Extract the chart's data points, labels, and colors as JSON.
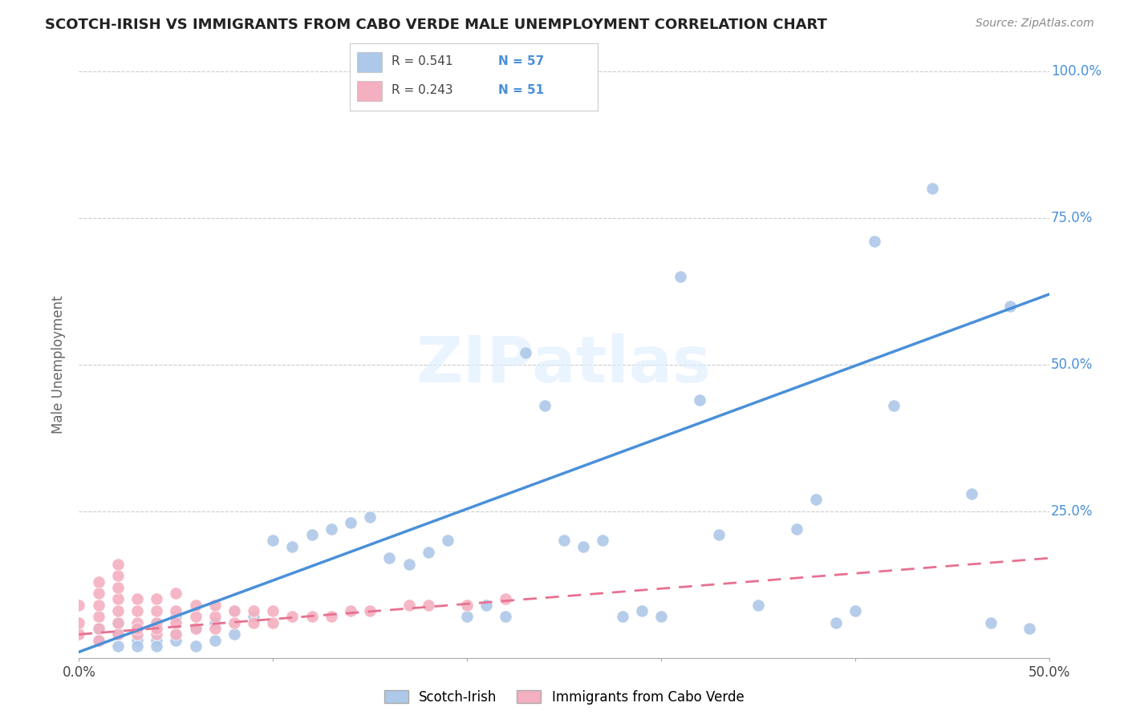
{
  "title": "SCOTCH-IRISH VS IMMIGRANTS FROM CABO VERDE MALE UNEMPLOYMENT CORRELATION CHART",
  "source": "Source: ZipAtlas.com",
  "ylabel": "Male Unemployment",
  "xlim": [
    0,
    0.5
  ],
  "ylim": [
    0,
    1.0
  ],
  "xticks": [
    0.0,
    0.1,
    0.2,
    0.3,
    0.4,
    0.5
  ],
  "xtick_labels": [
    "0.0%",
    "",
    "",
    "",
    "",
    "50.0%"
  ],
  "yticks": [
    0.0,
    0.25,
    0.5,
    0.75,
    1.0
  ],
  "ytick_labels": [
    "",
    "25.0%",
    "50.0%",
    "75.0%",
    "100.0%"
  ],
  "blue_R": "0.541",
  "blue_N": "57",
  "pink_R": "0.243",
  "pink_N": "51",
  "blue_color": "#adc8e8",
  "pink_color": "#f4afc0",
  "blue_line_color": "#4a90d9",
  "pink_line_color": "#e87090",
  "watermark": "ZIPatlas",
  "legend_label_blue": "Scotch-Irish",
  "legend_label_pink": "Immigrants from Cabo Verde",
  "blue_line_slope": 1.22,
  "blue_line_intercept": 0.01,
  "pink_line_slope": 0.26,
  "pink_line_intercept": 0.04,
  "blue_scatter_x": [
    0.01,
    0.01,
    0.02,
    0.02,
    0.02,
    0.03,
    0.03,
    0.03,
    0.04,
    0.04,
    0.04,
    0.05,
    0.05,
    0.05,
    0.06,
    0.06,
    0.07,
    0.07,
    0.08,
    0.08,
    0.09,
    0.1,
    0.11,
    0.12,
    0.13,
    0.14,
    0.15,
    0.16,
    0.17,
    0.18,
    0.19,
    0.2,
    0.21,
    0.22,
    0.23,
    0.24,
    0.25,
    0.26,
    0.27,
    0.28,
    0.29,
    0.3,
    0.31,
    0.32,
    0.33,
    0.35,
    0.37,
    0.38,
    0.39,
    0.4,
    0.41,
    0.42,
    0.44,
    0.46,
    0.47,
    0.48,
    0.49
  ],
  "blue_scatter_y": [
    0.03,
    0.05,
    0.02,
    0.04,
    0.06,
    0.03,
    0.05,
    0.02,
    0.03,
    0.06,
    0.02,
    0.04,
    0.07,
    0.03,
    0.05,
    0.02,
    0.06,
    0.03,
    0.08,
    0.04,
    0.07,
    0.2,
    0.19,
    0.21,
    0.22,
    0.23,
    0.24,
    0.17,
    0.16,
    0.18,
    0.2,
    0.07,
    0.09,
    0.07,
    0.52,
    0.43,
    0.2,
    0.19,
    0.2,
    0.07,
    0.08,
    0.07,
    0.65,
    0.44,
    0.21,
    0.09,
    0.22,
    0.27,
    0.06,
    0.08,
    0.71,
    0.43,
    0.8,
    0.28,
    0.06,
    0.6,
    0.05
  ],
  "pink_scatter_x": [
    0.0,
    0.0,
    0.0,
    0.01,
    0.01,
    0.01,
    0.01,
    0.01,
    0.01,
    0.02,
    0.02,
    0.02,
    0.02,
    0.02,
    0.02,
    0.02,
    0.03,
    0.03,
    0.03,
    0.03,
    0.03,
    0.04,
    0.04,
    0.04,
    0.04,
    0.04,
    0.05,
    0.05,
    0.05,
    0.05,
    0.06,
    0.06,
    0.06,
    0.07,
    0.07,
    0.07,
    0.08,
    0.08,
    0.09,
    0.09,
    0.1,
    0.1,
    0.11,
    0.12,
    0.13,
    0.14,
    0.15,
    0.17,
    0.18,
    0.2,
    0.22
  ],
  "pink_scatter_y": [
    0.04,
    0.06,
    0.09,
    0.03,
    0.05,
    0.07,
    0.09,
    0.11,
    0.13,
    0.04,
    0.06,
    0.08,
    0.1,
    0.12,
    0.14,
    0.16,
    0.04,
    0.06,
    0.08,
    0.1,
    0.05,
    0.04,
    0.06,
    0.08,
    0.1,
    0.05,
    0.04,
    0.06,
    0.08,
    0.11,
    0.05,
    0.07,
    0.09,
    0.05,
    0.07,
    0.09,
    0.06,
    0.08,
    0.06,
    0.08,
    0.06,
    0.08,
    0.07,
    0.07,
    0.07,
    0.08,
    0.08,
    0.09,
    0.09,
    0.09,
    0.1
  ]
}
